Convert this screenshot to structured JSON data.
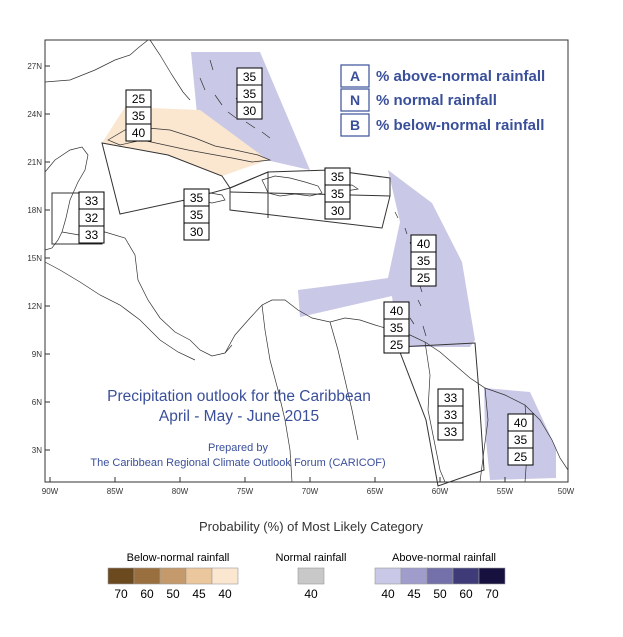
{
  "map": {
    "axes": {
      "lon_ticks": [
        "90W",
        "85W",
        "80W",
        "75W",
        "70W",
        "65W",
        "60W",
        "55W",
        "50W"
      ],
      "lat_ticks": [
        "27N",
        "24N",
        "21N",
        "18N",
        "15N",
        "12N",
        "9N",
        "6N",
        "3N"
      ]
    },
    "title_line1": "Precipitation outlook for the Caribbean",
    "title_line2": "April - May - June 2015",
    "prepared_by": "Prepared by",
    "organization": "The Caribbean Regional Climate Outlook Forum (CARICOF)",
    "key": {
      "A": {
        "letter": "A",
        "text": "% above-normal rainfall"
      },
      "N": {
        "letter": "N",
        "text": "% normal rainfall"
      },
      "B": {
        "letter": "B",
        "text": "% below-normal rainfall"
      }
    },
    "regions": {
      "bahamas": {
        "above": "35",
        "normal": "35",
        "below": "30"
      },
      "cuba_east": {
        "above": "25",
        "normal": "35",
        "below": "40"
      },
      "belize": {
        "above": "33",
        "normal": "32",
        "below": "33"
      },
      "jamaica": {
        "above": "35",
        "normal": "35",
        "below": "30"
      },
      "hispaniola": {
        "above": "35",
        "normal": "35",
        "below": "30"
      },
      "lesser_antilles": {
        "above": "40",
        "normal": "35",
        "below": "25"
      },
      "windward": {
        "above": "40",
        "normal": "35",
        "below": "25"
      },
      "guyana": {
        "above": "33",
        "normal": "33",
        "below": "33"
      },
      "suriname": {
        "above": "40",
        "normal": "35",
        "below": "25"
      }
    }
  },
  "legend": {
    "title": "Probability (%) of Most Likely Category",
    "below": {
      "label": "Below-normal rainfall",
      "values": [
        "70",
        "60",
        "50",
        "45",
        "40"
      ],
      "colors": [
        "#6b4a1f",
        "#9a6f3f",
        "#c49a6c",
        "#eac79c",
        "#fbe6d0"
      ]
    },
    "normal": {
      "label": "Normal rainfall",
      "values": [
        "40"
      ],
      "colors": [
        "#c8c8c8"
      ]
    },
    "above": {
      "label": "Above-normal rainfall",
      "values": [
        "40",
        "45",
        "50",
        "60",
        "70"
      ],
      "colors": [
        "#c9c8e6",
        "#a09ccb",
        "#7470a9",
        "#3f3b78",
        "#16113e"
      ]
    }
  },
  "colors": {
    "above_fill": "#c9c8e6",
    "below_fill": "#fbe6d0",
    "key_text": "#3a4f9a"
  }
}
